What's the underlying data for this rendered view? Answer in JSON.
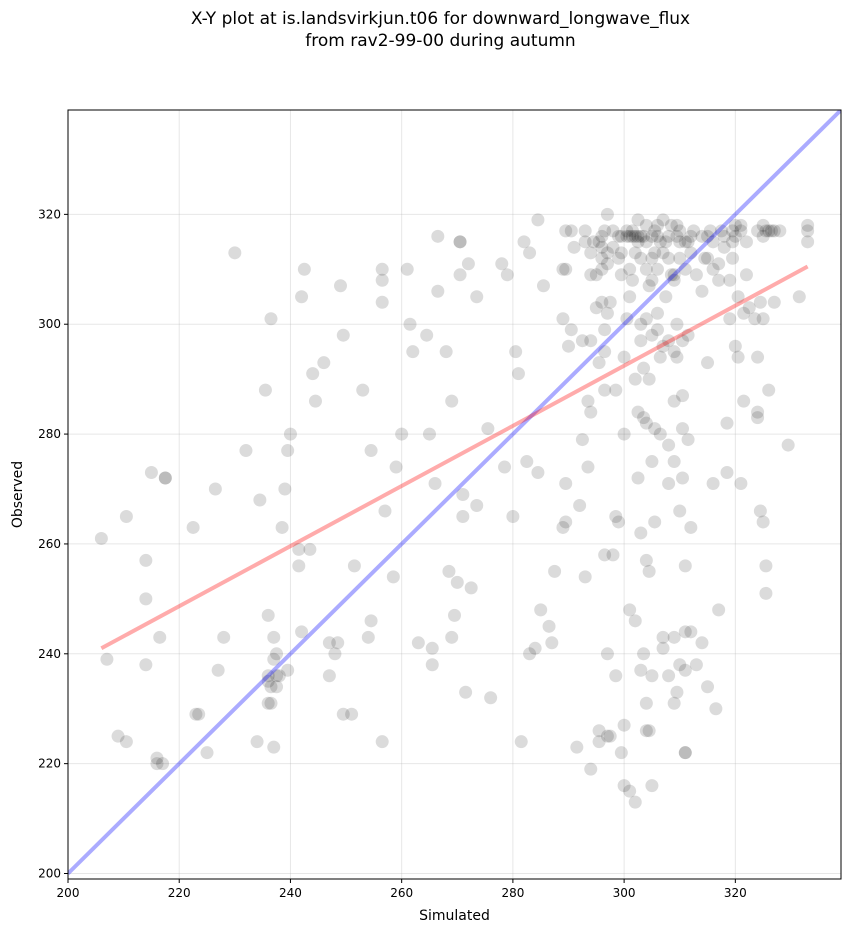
{
  "chart_data": {
    "type": "scatter",
    "title_lines": [
      "X-Y plot at is.landsvirkjun.t06 for downward_longwave_flux",
      "from rav2-99-00 during autumn"
    ],
    "xlabel": "Simulated",
    "ylabel": "Observed",
    "xlim": [
      200,
      339
    ],
    "ylim": [
      199,
      339
    ],
    "xticks": [
      200,
      220,
      240,
      260,
      280,
      300,
      320
    ],
    "yticks": [
      200,
      220,
      240,
      260,
      280,
      300,
      320
    ],
    "grid": true,
    "point_color": "#000000",
    "point_alpha": 0.14,
    "one_to_one_line": {
      "x": [
        200,
        339
      ],
      "y": [
        200,
        339
      ],
      "color": "#0000ff",
      "alpha": 0.33
    },
    "regression_line": {
      "x": [
        206,
        333
      ],
      "y": [
        241,
        310.5
      ],
      "color": "#ff0000",
      "alpha": 0.33
    },
    "points": [
      [
        206,
        261
      ],
      [
        207,
        239
      ],
      [
        209,
        225
      ],
      [
        210.5,
        224
      ],
      [
        210.5,
        265
      ],
      [
        214,
        257
      ],
      [
        214,
        250
      ],
      [
        214,
        238
      ],
      [
        215,
        273
      ],
      [
        216,
        221
      ],
      [
        216,
        220
      ],
      [
        216.5,
        243
      ],
      [
        217,
        220
      ],
      [
        217.5,
        272
      ],
      [
        217.5,
        272
      ],
      [
        222.5,
        263
      ],
      [
        223,
        229
      ],
      [
        223.5,
        229
      ],
      [
        225,
        222
      ],
      [
        226.5,
        270
      ],
      [
        227,
        237
      ],
      [
        228,
        243
      ],
      [
        230,
        313
      ],
      [
        232,
        277
      ],
      [
        234,
        224
      ],
      [
        234.5,
        268
      ],
      [
        235.5,
        288
      ],
      [
        236,
        247
      ],
      [
        236,
        231
      ],
      [
        236,
        236
      ],
      [
        236,
        235
      ],
      [
        236.5,
        234
      ],
      [
        236.5,
        231
      ],
      [
        236.5,
        301
      ],
      [
        237,
        243
      ],
      [
        237,
        239
      ],
      [
        237,
        223
      ],
      [
        237.5,
        234
      ],
      [
        237.5,
        236
      ],
      [
        237.5,
        240
      ],
      [
        238,
        236
      ],
      [
        238.5,
        263
      ],
      [
        239,
        270
      ],
      [
        239.5,
        237
      ],
      [
        239.5,
        277
      ],
      [
        240,
        280
      ],
      [
        241.5,
        259
      ],
      [
        241.5,
        256
      ],
      [
        242,
        305
      ],
      [
        242,
        244
      ],
      [
        242.5,
        310
      ],
      [
        243.5,
        259
      ],
      [
        244,
        291
      ],
      [
        244.5,
        286
      ],
      [
        246,
        293
      ],
      [
        247,
        242
      ],
      [
        247,
        236
      ],
      [
        248,
        240
      ],
      [
        248.5,
        242
      ],
      [
        249,
        307
      ],
      [
        249.5,
        298
      ],
      [
        249.5,
        229
      ],
      [
        251,
        229
      ],
      [
        251.5,
        256
      ],
      [
        253,
        288
      ],
      [
        254,
        243
      ],
      [
        254.5,
        246
      ],
      [
        254.5,
        277
      ],
      [
        256.5,
        310
      ],
      [
        256.5,
        308
      ],
      [
        256.5,
        304
      ],
      [
        256.5,
        224
      ],
      [
        257,
        266
      ],
      [
        258.5,
        254
      ],
      [
        259,
        274
      ],
      [
        260,
        280
      ],
      [
        261,
        310
      ],
      [
        261.5,
        300
      ],
      [
        262,
        295
      ],
      [
        263,
        242
      ],
      [
        264.5,
        298
      ],
      [
        265,
        280
      ],
      [
        265.5,
        241
      ],
      [
        265.5,
        238
      ],
      [
        266,
        271
      ],
      [
        266.5,
        316
      ],
      [
        266.5,
        306
      ],
      [
        268,
        295
      ],
      [
        268.5,
        255
      ],
      [
        269,
        286
      ],
      [
        269,
        243
      ],
      [
        269.5,
        247
      ],
      [
        270,
        253
      ],
      [
        270.5,
        309
      ],
      [
        270.5,
        315
      ],
      [
        270.5,
        315
      ],
      [
        271,
        269
      ],
      [
        271,
        265
      ],
      [
        271.5,
        233
      ],
      [
        272,
        311
      ],
      [
        272.5,
        252
      ],
      [
        273.5,
        305
      ],
      [
        273.5,
        267
      ],
      [
        275.5,
        281
      ],
      [
        276,
        232
      ],
      [
        278,
        311
      ],
      [
        278.5,
        274
      ],
      [
        279,
        309
      ],
      [
        280,
        265
      ],
      [
        280.5,
        295
      ],
      [
        281,
        291
      ],
      [
        281.5,
        224
      ],
      [
        282,
        315
      ],
      [
        282.5,
        275
      ],
      [
        283,
        240
      ],
      [
        283,
        313
      ],
      [
        284,
        241
      ],
      [
        284.5,
        273
      ],
      [
        284.5,
        319
      ],
      [
        285,
        248
      ],
      [
        285.5,
        307
      ],
      [
        286.5,
        245
      ],
      [
        287,
        242
      ],
      [
        287.5,
        255
      ],
      [
        289,
        263
      ],
      [
        289,
        301
      ],
      [
        289,
        310
      ],
      [
        289.5,
        317
      ],
      [
        289.5,
        264
      ],
      [
        289.5,
        271
      ],
      [
        289.5,
        310
      ],
      [
        290,
        296
      ],
      [
        290.5,
        299
      ],
      [
        290.5,
        317
      ],
      [
        291,
        314
      ],
      [
        291.5,
        223
      ],
      [
        292,
        267
      ],
      [
        292.5,
        279
      ],
      [
        292.5,
        297
      ],
      [
        293,
        317
      ],
      [
        293,
        315
      ],
      [
        293,
        254
      ],
      [
        293.5,
        274
      ],
      [
        293.5,
        286
      ],
      [
        294,
        284
      ],
      [
        294,
        297
      ],
      [
        294,
        219
      ],
      [
        294,
        309
      ],
      [
        294,
        313
      ],
      [
        294.5,
        315
      ],
      [
        295,
        303
      ],
      [
        295,
        309
      ],
      [
        295.5,
        226
      ],
      [
        295.5,
        224
      ],
      [
        295.5,
        293
      ],
      [
        295.5,
        315
      ],
      [
        296,
        316
      ],
      [
        296,
        314
      ],
      [
        296,
        312
      ],
      [
        296,
        310
      ],
      [
        296,
        304
      ],
      [
        296.5,
        317
      ],
      [
        296.5,
        258
      ],
      [
        296.5,
        295
      ],
      [
        296.5,
        288
      ],
      [
        296.5,
        299
      ],
      [
        297,
        320
      ],
      [
        297,
        313
      ],
      [
        297,
        311
      ],
      [
        297,
        302
      ],
      [
        297,
        225
      ],
      [
        297,
        240
      ],
      [
        297.5,
        225
      ],
      [
        297.5,
        304
      ],
      [
        298,
        258
      ],
      [
        298,
        314
      ],
      [
        298,
        317
      ],
      [
        298.5,
        265
      ],
      [
        298.5,
        236
      ],
      [
        298.5,
        288
      ],
      [
        299,
        316
      ],
      [
        299,
        312
      ],
      [
        299,
        264
      ],
      [
        299.5,
        309
      ],
      [
        299.5,
        222
      ],
      [
        299.5,
        316
      ],
      [
        299.5,
        313
      ],
      [
        300,
        294
      ],
      [
        300,
        280
      ],
      [
        300,
        227
      ],
      [
        300,
        216
      ],
      [
        300.5,
        301
      ],
      [
        300.5,
        317
      ],
      [
        300.5,
        316
      ],
      [
        301,
        316
      ],
      [
        301,
        305
      ],
      [
        301,
        310
      ],
      [
        301,
        248
      ],
      [
        301,
        215
      ],
      [
        301.5,
        316
      ],
      [
        301.5,
        308
      ],
      [
        301.5,
        317
      ],
      [
        302,
        316
      ],
      [
        302,
        313
      ],
      [
        302,
        290
      ],
      [
        302,
        246
      ],
      [
        302,
        213
      ],
      [
        302.5,
        319
      ],
      [
        302.5,
        316
      ],
      [
        302.5,
        315
      ],
      [
        302.5,
        284
      ],
      [
        302.5,
        272
      ],
      [
        303,
        316
      ],
      [
        303,
        312
      ],
      [
        303,
        297
      ],
      [
        303,
        237
      ],
      [
        303,
        262
      ],
      [
        303,
        300
      ],
      [
        303.5,
        283
      ],
      [
        303.5,
        240
      ],
      [
        303.5,
        292
      ],
      [
        303.5,
        316
      ],
      [
        304,
        310
      ],
      [
        304,
        315
      ],
      [
        304,
        318
      ],
      [
        304,
        231
      ],
      [
        304,
        226
      ],
      [
        304,
        257
      ],
      [
        304,
        282
      ],
      [
        304,
        301
      ],
      [
        304.5,
        307
      ],
      [
        304.5,
        290
      ],
      [
        304.5,
        255
      ],
      [
        304.5,
        226
      ],
      [
        305,
        312
      ],
      [
        305,
        316
      ],
      [
        305,
        308
      ],
      [
        305,
        236
      ],
      [
        305,
        275
      ],
      [
        305,
        298
      ],
      [
        305,
        216
      ],
      [
        305.5,
        317
      ],
      [
        305.5,
        313
      ],
      [
        305.5,
        264
      ],
      [
        305.5,
        281
      ],
      [
        306,
        316
      ],
      [
        306,
        302
      ],
      [
        306,
        299
      ],
      [
        306,
        310
      ],
      [
        306,
        318
      ],
      [
        306.5,
        294
      ],
      [
        306.5,
        315
      ],
      [
        306.5,
        280
      ],
      [
        307,
        319
      ],
      [
        307,
        313
      ],
      [
        307,
        241
      ],
      [
        307,
        243
      ],
      [
        307,
        296
      ],
      [
        307.5,
        305
      ],
      [
        307.5,
        315
      ],
      [
        308,
        316
      ],
      [
        308,
        278
      ],
      [
        308,
        297
      ],
      [
        308,
        312
      ],
      [
        308,
        236
      ],
      [
        308,
        271
      ],
      [
        308.5,
        309
      ],
      [
        308.5,
        318
      ],
      [
        309,
        295
      ],
      [
        309,
        309
      ],
      [
        309,
        231
      ],
      [
        309,
        243
      ],
      [
        309,
        275
      ],
      [
        309,
        286
      ],
      [
        309,
        308
      ],
      [
        309.5,
        318
      ],
      [
        309.5,
        316
      ],
      [
        309.5,
        294
      ],
      [
        309.5,
        233
      ],
      [
        309.5,
        300
      ],
      [
        310,
        238
      ],
      [
        310,
        312
      ],
      [
        310,
        315
      ],
      [
        310,
        317
      ],
      [
        310,
        266
      ],
      [
        310.5,
        272
      ],
      [
        310.5,
        281
      ],
      [
        310.5,
        297
      ],
      [
        310.5,
        287
      ],
      [
        311,
        222
      ],
      [
        311,
        237
      ],
      [
        311,
        315
      ],
      [
        311,
        310
      ],
      [
        311,
        256
      ],
      [
        311,
        244
      ],
      [
        311,
        222
      ],
      [
        311.5,
        279
      ],
      [
        311.5,
        298
      ],
      [
        311.5,
        315
      ],
      [
        312,
        263
      ],
      [
        312,
        244
      ],
      [
        312,
        313
      ],
      [
        312,
        316
      ],
      [
        312.5,
        317
      ],
      [
        313,
        238
      ],
      [
        313,
        309
      ],
      [
        314,
        316
      ],
      [
        314,
        306
      ],
      [
        314,
        242
      ],
      [
        314.5,
        312
      ],
      [
        315,
        316
      ],
      [
        315,
        312
      ],
      [
        315,
        293
      ],
      [
        315,
        234
      ],
      [
        315.5,
        317
      ],
      [
        316,
        315
      ],
      [
        316,
        310
      ],
      [
        316,
        271
      ],
      [
        316.5,
        230
      ],
      [
        317,
        311
      ],
      [
        317,
        308
      ],
      [
        317,
        248
      ],
      [
        317.5,
        317
      ],
      [
        318,
        314
      ],
      [
        318,
        316
      ],
      [
        318.5,
        273
      ],
      [
        318.5,
        282
      ],
      [
        319,
        301
      ],
      [
        319,
        308
      ],
      [
        319.5,
        315
      ],
      [
        319.5,
        317
      ],
      [
        319.5,
        312
      ],
      [
        320,
        296
      ],
      [
        320,
        318
      ],
      [
        320,
        316
      ],
      [
        320.5,
        305
      ],
      [
        320.5,
        294
      ],
      [
        321,
        271
      ],
      [
        321,
        318
      ],
      [
        321,
        317
      ],
      [
        321.5,
        286
      ],
      [
        321.5,
        302
      ],
      [
        322,
        315
      ],
      [
        322,
        309
      ],
      [
        322.5,
        303
      ],
      [
        323.5,
        301
      ],
      [
        324,
        294
      ],
      [
        324,
        284
      ],
      [
        324,
        283
      ],
      [
        324,
        317
      ],
      [
        324.5,
        304
      ],
      [
        324.5,
        266
      ],
      [
        325,
        264
      ],
      [
        325,
        318
      ],
      [
        325,
        316
      ],
      [
        325,
        301
      ],
      [
        325.5,
        251
      ],
      [
        325.5,
        256
      ],
      [
        325.5,
        317
      ],
      [
        326,
        317
      ],
      [
        326,
        288
      ],
      [
        326.5,
        317
      ],
      [
        327,
        317
      ],
      [
        327,
        304
      ],
      [
        328,
        317
      ],
      [
        329.5,
        278
      ],
      [
        331.5,
        305
      ],
      [
        333,
        318
      ],
      [
        333,
        317
      ],
      [
        333,
        315
      ]
    ]
  }
}
